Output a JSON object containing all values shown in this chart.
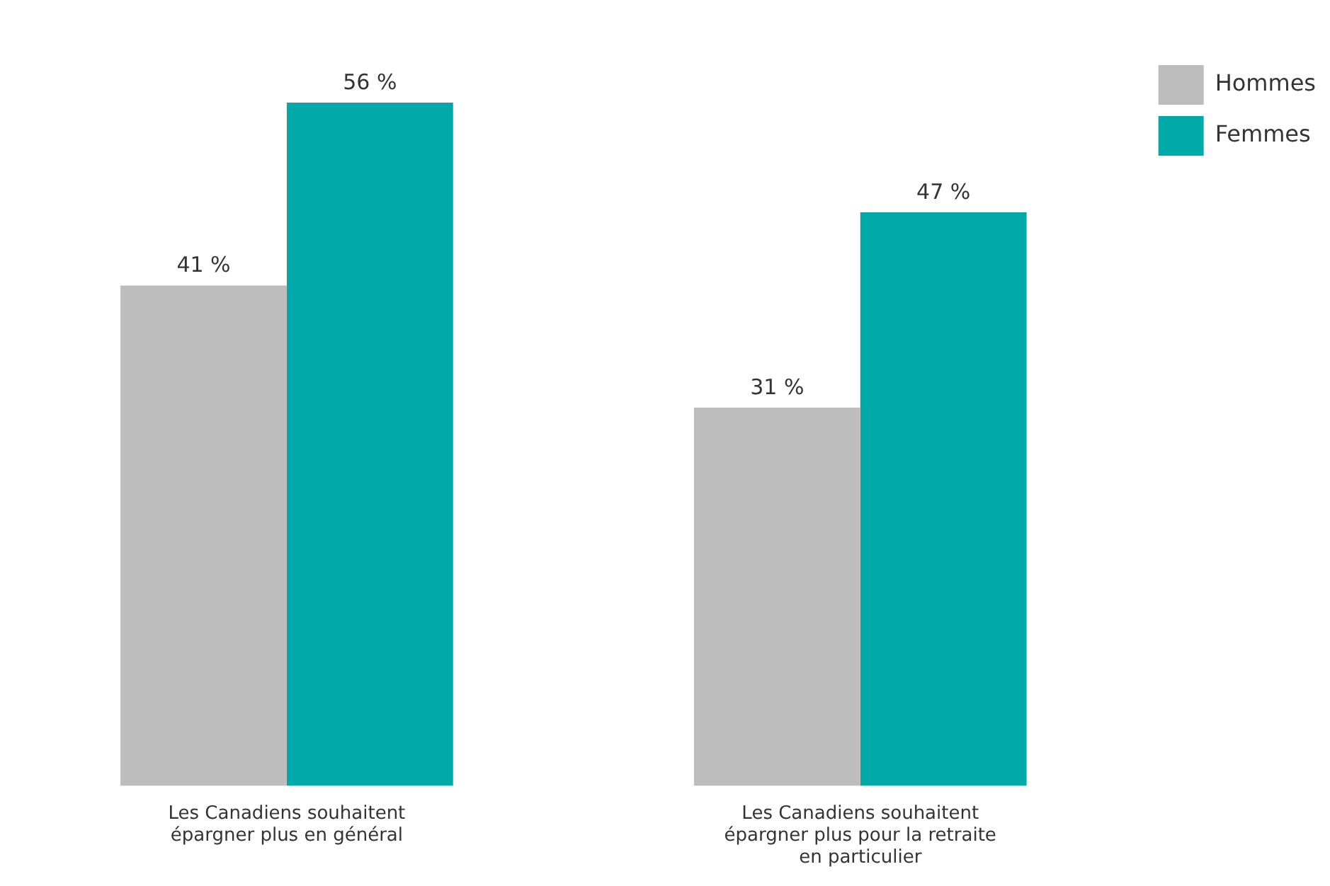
{
  "chart_data": {
    "type": "bar",
    "categories": [
      "Les Canadiens souhaitent épargner plus en général",
      "Les Canadiens souhaitent épargner plus pour la retraite en particulier"
    ],
    "series": [
      {
        "name": "Hommes",
        "color": "#bcbdbc",
        "values": [
          41,
          31
        ],
        "value_labels": [
          "41 %",
          "31 %"
        ]
      },
      {
        "name": "Femmes",
        "color": "#00aaa9",
        "values": [
          56,
          47
        ],
        "value_labels": [
          "56 %",
          "47 %"
        ]
      }
    ],
    "legend": "top right",
    "grid": false,
    "tick_labels": "x"
  }
}
